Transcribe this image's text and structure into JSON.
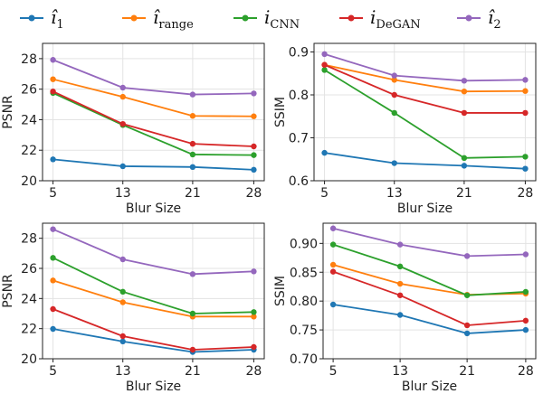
{
  "legend": {
    "entries": [
      {
        "base": "î",
        "sub": "1",
        "color": "#1f77b4"
      },
      {
        "base": "î",
        "sub": "range",
        "color": "#ff7f0e"
      },
      {
        "base": "i",
        "sub": "CNN",
        "color": "#2ca02c"
      },
      {
        "base": "i",
        "sub": "DeGAN",
        "color": "#d62728"
      },
      {
        "base": "î",
        "sub": "2",
        "color": "#9467bd"
      }
    ]
  },
  "chart_data": [
    {
      "type": "line",
      "xlabel": "Blur Size",
      "ylabel": "PSNR",
      "x": [
        5,
        13,
        21,
        28
      ],
      "xticks": [
        "5",
        "13",
        "21",
        "28"
      ],
      "ylim": [
        20,
        29
      ],
      "yticks": [
        "20",
        "22",
        "24",
        "26",
        "28"
      ],
      "grid": true,
      "series": [
        {
          "values": [
            21.4,
            20.95,
            20.9,
            20.72
          ],
          "color": "#1f77b4"
        },
        {
          "values": [
            26.65,
            25.5,
            24.25,
            24.22
          ],
          "color": "#ff7f0e"
        },
        {
          "values": [
            25.75,
            23.65,
            21.72,
            21.68
          ],
          "color": "#2ca02c"
        },
        {
          "values": [
            25.85,
            23.72,
            22.42,
            22.25
          ],
          "color": "#d62728"
        },
        {
          "values": [
            27.92,
            26.1,
            25.65,
            25.72
          ],
          "color": "#9467bd"
        }
      ]
    },
    {
      "type": "line",
      "xlabel": "Blur Size",
      "ylabel": "SSIM",
      "x": [
        5,
        13,
        21,
        28
      ],
      "xticks": [
        "5",
        "13",
        "21",
        "28"
      ],
      "ylim": [
        0.6,
        0.92
      ],
      "yticks": [
        "0.6",
        "0.7",
        "0.8",
        "0.9"
      ],
      "grid": true,
      "series": [
        {
          "values": [
            0.665,
            0.641,
            0.635,
            0.628
          ],
          "color": "#1f77b4"
        },
        {
          "values": [
            0.87,
            0.835,
            0.808,
            0.809
          ],
          "color": "#ff7f0e"
        },
        {
          "values": [
            0.858,
            0.758,
            0.653,
            0.656
          ],
          "color": "#2ca02c"
        },
        {
          "values": [
            0.87,
            0.8,
            0.758,
            0.758
          ],
          "color": "#d62728"
        },
        {
          "values": [
            0.895,
            0.845,
            0.833,
            0.835
          ],
          "color": "#9467bd"
        }
      ]
    },
    {
      "type": "line",
      "xlabel": "Blur Size",
      "ylabel": "PSNR",
      "x": [
        5,
        13,
        21,
        28
      ],
      "xticks": [
        "5",
        "13",
        "21",
        "28"
      ],
      "ylim": [
        20,
        29
      ],
      "yticks": [
        "20",
        "22",
        "24",
        "26",
        "28"
      ],
      "grid": true,
      "series": [
        {
          "values": [
            21.98,
            21.15,
            20.45,
            20.6
          ],
          "color": "#1f77b4"
        },
        {
          "values": [
            25.2,
            23.75,
            22.8,
            22.8
          ],
          "color": "#ff7f0e"
        },
        {
          "values": [
            26.7,
            24.45,
            23.0,
            23.1
          ],
          "color": "#2ca02c"
        },
        {
          "values": [
            23.3,
            21.5,
            20.6,
            20.78
          ],
          "color": "#d62728"
        },
        {
          "values": [
            28.6,
            26.6,
            25.62,
            25.8
          ],
          "color": "#9467bd"
        }
      ]
    },
    {
      "type": "line",
      "xlabel": "Blur Size",
      "ylabel": "SSIM",
      "x": [
        5,
        13,
        21,
        28
      ],
      "xticks": [
        "5",
        "13",
        "21",
        "28"
      ],
      "ylim": [
        0.7,
        0.935
      ],
      "yticks": [
        "0.70",
        "0.75",
        "0.80",
        "0.85",
        "0.90"
      ],
      "grid": true,
      "series": [
        {
          "values": [
            0.794,
            0.776,
            0.744,
            0.75
          ],
          "color": "#1f77b4"
        },
        {
          "values": [
            0.863,
            0.83,
            0.811,
            0.813
          ],
          "color": "#ff7f0e"
        },
        {
          "values": [
            0.898,
            0.86,
            0.81,
            0.816
          ],
          "color": "#2ca02c"
        },
        {
          "values": [
            0.851,
            0.81,
            0.758,
            0.766
          ],
          "color": "#d62728"
        },
        {
          "values": [
            0.926,
            0.898,
            0.878,
            0.881
          ],
          "color": "#9467bd"
        }
      ]
    }
  ]
}
